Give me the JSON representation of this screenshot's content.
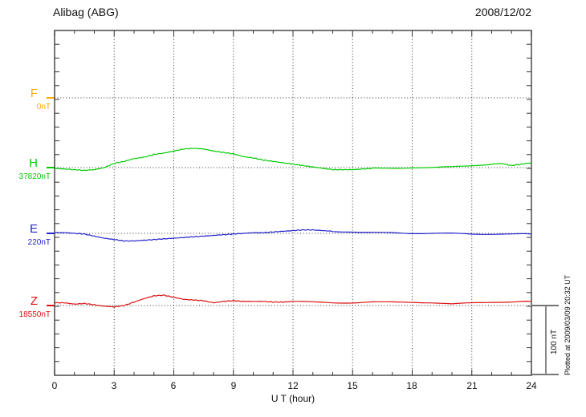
{
  "header": {
    "title": "Alibag (ABG)",
    "date": "2008/12/02"
  },
  "x_axis": {
    "label": "U T (hour)",
    "tick_labels": [
      "0",
      "3",
      "6",
      "9",
      "12",
      "15",
      "18",
      "21",
      "24"
    ]
  },
  "scale_bar": {
    "label": "100 nT",
    "nT": 100
  },
  "footnote": "Plotted at 2009/03/09 20:32 UT",
  "colors": {
    "F": "#FFAA00",
    "H": "#00CC00",
    "E": "#2222CC",
    "Z": "#DD1111",
    "axis": "#555555",
    "grid": "#333333"
  },
  "chart_data": {
    "type": "line",
    "title": "Alibag (ABG) magnetogram 2008/12/02",
    "xlabel": "U T (hour)",
    "x_range": [
      0,
      24
    ],
    "x_major_tick_hours": 3,
    "x_minor_tick_hours": 1,
    "y_minor_tick_nT": 20,
    "grid": "dotted vertical lines every 3 hours; dotted horizontal baseline per component",
    "legend_position": "left margin, one colored label per component",
    "series": [
      {
        "name": "F",
        "color": "#FFAA00",
        "baseline_label": "0nT",
        "baseline_value": 0,
        "unit": "nT",
        "x": [],
        "offset_nT": []
      },
      {
        "name": "H",
        "color": "#00CC00",
        "baseline_label": "37820nT",
        "baseline_value": 37820,
        "unit": "nT",
        "x": [
          0,
          0.5,
          1,
          1.5,
          2,
          2.5,
          3,
          3.5,
          4,
          4.5,
          5,
          5.5,
          6,
          6.5,
          7,
          7.5,
          8,
          8.5,
          9,
          9.5,
          10,
          10.5,
          11,
          11.5,
          12,
          12.5,
          13,
          13.5,
          14,
          14.5,
          15,
          15.5,
          16,
          17,
          18,
          19,
          20,
          21,
          22,
          22.5,
          23,
          23.5,
          24
        ],
        "offset_nT": [
          -1,
          -2,
          -3,
          -4,
          -3,
          0,
          6,
          9,
          13,
          15,
          19,
          21,
          24,
          27,
          28,
          27,
          24,
          22,
          20,
          16,
          14,
          11,
          9,
          7,
          5,
          3,
          1,
          -1,
          -3,
          -3,
          -3,
          -2,
          -1,
          -1,
          0,
          0,
          1,
          3,
          5,
          6,
          3,
          5,
          7
        ]
      },
      {
        "name": "E",
        "color": "#2222CC",
        "baseline_label": "220nT",
        "baseline_value": 220,
        "unit": "nT",
        "x": [
          0,
          0.5,
          1,
          1.5,
          2,
          2.5,
          3,
          3.5,
          4,
          4.5,
          5,
          5.5,
          6,
          6.5,
          7,
          7.5,
          8,
          8.5,
          9,
          9.5,
          10,
          10.5,
          11,
          11.5,
          12,
          12.5,
          13,
          13.5,
          14,
          15,
          16,
          17,
          18,
          19,
          20,
          21,
          22,
          23,
          24
        ],
        "offset_nT": [
          1,
          1,
          0,
          -1,
          -4,
          -7,
          -9,
          -11,
          -11,
          -10,
          -9,
          -8,
          -7,
          -6,
          -5,
          -4,
          -3,
          -2,
          -1,
          0,
          1,
          1,
          2,
          3,
          4,
          5,
          5,
          4,
          3,
          2,
          1,
          1,
          0,
          0,
          0,
          -1,
          -1,
          -1,
          -1
        ]
      },
      {
        "name": "Z",
        "color": "#DD1111",
        "baseline_label": "18550nT",
        "baseline_value": 18550,
        "unit": "nT",
        "x": [
          0,
          0.5,
          1,
          1.5,
          2,
          2.5,
          3,
          3.5,
          4,
          4.5,
          5,
          5.5,
          6,
          6.5,
          7,
          7.5,
          8,
          8.5,
          9,
          9.5,
          10,
          10.5,
          11,
          11.5,
          12,
          13,
          14,
          15,
          16,
          17,
          18,
          19,
          20,
          21,
          22,
          23,
          24
        ],
        "offset_nT": [
          4,
          4,
          2,
          3,
          1,
          -1,
          -2,
          0,
          5,
          10,
          14,
          15,
          12,
          9,
          8,
          7,
          4,
          6,
          7,
          6,
          6,
          6,
          5,
          5,
          6,
          5,
          4,
          4,
          5,
          5,
          5,
          4,
          2,
          4,
          5,
          5,
          6
        ]
      }
    ]
  }
}
